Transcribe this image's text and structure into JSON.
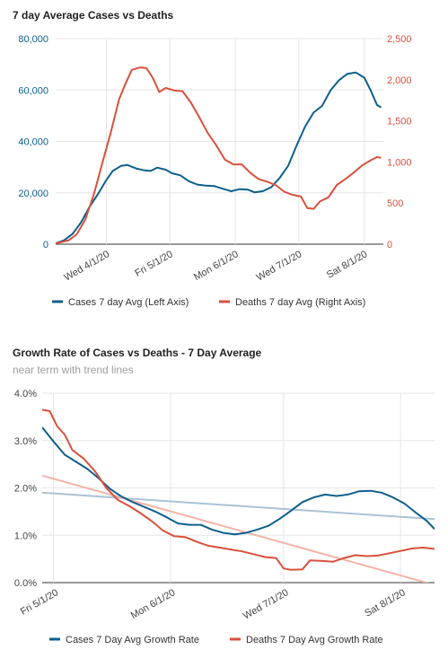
{
  "chart_data": [
    {
      "type": "line",
      "title": "7 day Average Cases vs Deaths",
      "x_ticks": [
        "Wed 4/1/20",
        "Fri 5/1/20",
        "Mon 6/1/20",
        "Wed 7/1/20",
        "Sat 8/1/20"
      ],
      "y_left_ticks": [
        "0",
        "20,000",
        "40,000",
        "60,000",
        "80,000"
      ],
      "y_right_ticks": [
        "0",
        "500",
        "1,000",
        "1,500",
        "2,000",
        "2,500"
      ],
      "y_left_range": [
        0,
        80000
      ],
      "y_right_range": [
        0,
        2500
      ],
      "x_start": "2020-03-08",
      "x_end": "2020-08-10",
      "legend_position": "bottom",
      "series": [
        {
          "name": "Cases 7 day Avg (Left Axis)",
          "axis": "left",
          "color": "#0e5f8c",
          "points": [
            [
              "2020-03-08",
              300
            ],
            [
              "2020-03-12",
              1500
            ],
            [
              "2020-03-16",
              4000
            ],
            [
              "2020-03-20",
              8500
            ],
            [
              "2020-03-24",
              14500
            ],
            [
              "2020-03-28",
              19500
            ],
            [
              "2020-04-01",
              25000
            ],
            [
              "2020-04-04",
              28500
            ],
            [
              "2020-04-08",
              30500
            ],
            [
              "2020-04-11",
              30800
            ],
            [
              "2020-04-15",
              29500
            ],
            [
              "2020-04-19",
              28700
            ],
            [
              "2020-04-22",
              28500
            ],
            [
              "2020-04-25",
              29800
            ],
            [
              "2020-04-29",
              29000
            ],
            [
              "2020-05-02",
              27600
            ],
            [
              "2020-05-06",
              26800
            ],
            [
              "2020-05-10",
              24500
            ],
            [
              "2020-05-14",
              23200
            ],
            [
              "2020-05-18",
              22800
            ],
            [
              "2020-05-22",
              22600
            ],
            [
              "2020-05-26",
              21600
            ],
            [
              "2020-05-30",
              20600
            ],
            [
              "2020-06-03",
              21400
            ],
            [
              "2020-06-07",
              21200
            ],
            [
              "2020-06-10",
              20200
            ],
            [
              "2020-06-14",
              20600
            ],
            [
              "2020-06-18",
              22200
            ],
            [
              "2020-06-22",
              25800
            ],
            [
              "2020-06-26",
              30500
            ],
            [
              "2020-06-30",
              38500
            ],
            [
              "2020-07-04",
              45800
            ],
            [
              "2020-07-08",
              51200
            ],
            [
              "2020-07-12",
              53800
            ],
            [
              "2020-07-16",
              59800
            ],
            [
              "2020-07-20",
              63800
            ],
            [
              "2020-07-24",
              66300
            ],
            [
              "2020-07-28",
              66800
            ],
            [
              "2020-08-01",
              64800
            ],
            [
              "2020-08-04",
              59800
            ],
            [
              "2020-08-07",
              54200
            ],
            [
              "2020-08-09",
              53200
            ]
          ]
        },
        {
          "name": "Deaths 7 day Avg (Right Axis)",
          "axis": "right",
          "color": "#d9503d",
          "points": [
            [
              "2020-03-08",
              10
            ],
            [
              "2020-03-14",
              45
            ],
            [
              "2020-03-18",
              120
            ],
            [
              "2020-03-22",
              300
            ],
            [
              "2020-03-26",
              600
            ],
            [
              "2020-03-30",
              980
            ],
            [
              "2020-04-03",
              1350
            ],
            [
              "2020-04-07",
              1760
            ],
            [
              "2020-04-10",
              1950
            ],
            [
              "2020-04-13",
              2120
            ],
            [
              "2020-04-17",
              2150
            ],
            [
              "2020-04-20",
              2140
            ],
            [
              "2020-04-23",
              2020
            ],
            [
              "2020-04-26",
              1850
            ],
            [
              "2020-04-29",
              1900
            ],
            [
              "2020-05-03",
              1870
            ],
            [
              "2020-05-07",
              1860
            ],
            [
              "2020-05-11",
              1720
            ],
            [
              "2020-05-15",
              1540
            ],
            [
              "2020-05-19",
              1350
            ],
            [
              "2020-05-23",
              1200
            ],
            [
              "2020-05-27",
              1030
            ],
            [
              "2020-05-31",
              970
            ],
            [
              "2020-06-04",
              970
            ],
            [
              "2020-06-08",
              870
            ],
            [
              "2020-06-12",
              790
            ],
            [
              "2020-06-16",
              760
            ],
            [
              "2020-06-20",
              720
            ],
            [
              "2020-06-24",
              640
            ],
            [
              "2020-06-28",
              600
            ],
            [
              "2020-07-02",
              580
            ],
            [
              "2020-07-05",
              440
            ],
            [
              "2020-07-08",
              430
            ],
            [
              "2020-07-11",
              520
            ],
            [
              "2020-07-15",
              570
            ],
            [
              "2020-07-19",
              720
            ],
            [
              "2020-07-23",
              790
            ],
            [
              "2020-07-27",
              870
            ],
            [
              "2020-07-31",
              960
            ],
            [
              "2020-08-04",
              1020
            ],
            [
              "2020-08-07",
              1060
            ],
            [
              "2020-08-09",
              1050
            ]
          ]
        }
      ]
    },
    {
      "type": "line",
      "title": "Growth Rate of Cases vs Deaths - 7 Day Average",
      "subtitle": "near term with trend lines",
      "x_ticks": [
        "Fri 5/1/20",
        "Mon 6/1/20",
        "Wed 7/1/20",
        "Sat 8/1/20"
      ],
      "y_ticks": [
        "0.0%",
        "1.0%",
        "2.0%",
        "3.0%",
        "4.0%"
      ],
      "y_range": [
        0,
        4
      ],
      "x_start": "2020-04-28",
      "x_end": "2020-08-10",
      "legend_position": "bottom",
      "series": [
        {
          "name": "Cases 7 Day Avg Growth Rate",
          "color": "#0e5f8c",
          "points": [
            [
              "2020-04-28",
              3.28
            ],
            [
              "2020-05-01",
              2.98
            ],
            [
              "2020-05-04",
              2.7
            ],
            [
              "2020-05-07",
              2.55
            ],
            [
              "2020-05-10",
              2.4
            ],
            [
              "2020-05-13",
              2.2
            ],
            [
              "2020-05-16",
              1.98
            ],
            [
              "2020-05-19",
              1.82
            ],
            [
              "2020-05-22",
              1.7
            ],
            [
              "2020-05-25",
              1.6
            ],
            [
              "2020-05-28",
              1.5
            ],
            [
              "2020-05-31",
              1.38
            ],
            [
              "2020-06-03",
              1.25
            ],
            [
              "2020-06-06",
              1.22
            ],
            [
              "2020-06-09",
              1.22
            ],
            [
              "2020-06-12",
              1.12
            ],
            [
              "2020-06-15",
              1.05
            ],
            [
              "2020-06-18",
              1.02
            ],
            [
              "2020-06-21",
              1.05
            ],
            [
              "2020-06-24",
              1.12
            ],
            [
              "2020-06-27",
              1.2
            ],
            [
              "2020-06-30",
              1.35
            ],
            [
              "2020-07-03",
              1.52
            ],
            [
              "2020-07-06",
              1.7
            ],
            [
              "2020-07-09",
              1.8
            ],
            [
              "2020-07-12",
              1.86
            ],
            [
              "2020-07-15",
              1.83
            ],
            [
              "2020-07-18",
              1.86
            ],
            [
              "2020-07-21",
              1.93
            ],
            [
              "2020-07-24",
              1.94
            ],
            [
              "2020-07-27",
              1.9
            ],
            [
              "2020-07-30",
              1.8
            ],
            [
              "2020-08-02",
              1.67
            ],
            [
              "2020-08-05",
              1.48
            ],
            [
              "2020-08-08",
              1.3
            ],
            [
              "2020-08-10",
              1.13
            ]
          ]
        },
        {
          "name": "Deaths 7 Day Avg Growth Rate",
          "color": "#d9503d",
          "points": [
            [
              "2020-04-28",
              3.65
            ],
            [
              "2020-04-30",
              3.62
            ],
            [
              "2020-05-02",
              3.3
            ],
            [
              "2020-05-04",
              3.12
            ],
            [
              "2020-05-06",
              2.8
            ],
            [
              "2020-05-09",
              2.62
            ],
            [
              "2020-05-12",
              2.35
            ],
            [
              "2020-05-15",
              2.0
            ],
            [
              "2020-05-18",
              1.75
            ],
            [
              "2020-05-21",
              1.62
            ],
            [
              "2020-05-24",
              1.47
            ],
            [
              "2020-05-27",
              1.3
            ],
            [
              "2020-05-30",
              1.1
            ],
            [
              "2020-06-02",
              0.98
            ],
            [
              "2020-06-05",
              0.96
            ],
            [
              "2020-06-08",
              0.86
            ],
            [
              "2020-06-11",
              0.78
            ],
            [
              "2020-06-14",
              0.74
            ],
            [
              "2020-06-17",
              0.7
            ],
            [
              "2020-06-20",
              0.66
            ],
            [
              "2020-06-23",
              0.6
            ],
            [
              "2020-06-26",
              0.54
            ],
            [
              "2020-06-29",
              0.52
            ],
            [
              "2020-07-01",
              0.3
            ],
            [
              "2020-07-03",
              0.27
            ],
            [
              "2020-07-06",
              0.28
            ],
            [
              "2020-07-08",
              0.47
            ],
            [
              "2020-07-11",
              0.46
            ],
            [
              "2020-07-14",
              0.44
            ],
            [
              "2020-07-17",
              0.52
            ],
            [
              "2020-07-20",
              0.58
            ],
            [
              "2020-07-23",
              0.56
            ],
            [
              "2020-07-26",
              0.57
            ],
            [
              "2020-07-29",
              0.62
            ],
            [
              "2020-08-01",
              0.67
            ],
            [
              "2020-08-04",
              0.72
            ],
            [
              "2020-08-07",
              0.74
            ],
            [
              "2020-08-10",
              0.71
            ]
          ]
        },
        {
          "name": "Cases trend line",
          "color": "#a9c3d6",
          "trendline": true,
          "points": [
            [
              "2020-04-28",
              1.9
            ],
            [
              "2020-08-10",
              1.34
            ]
          ]
        },
        {
          "name": "Deaths trend line",
          "color": "#f4b3a6",
          "trendline": true,
          "points": [
            [
              "2020-04-28",
              2.26
            ],
            [
              "2020-08-10",
              -0.05
            ]
          ]
        }
      ]
    }
  ]
}
